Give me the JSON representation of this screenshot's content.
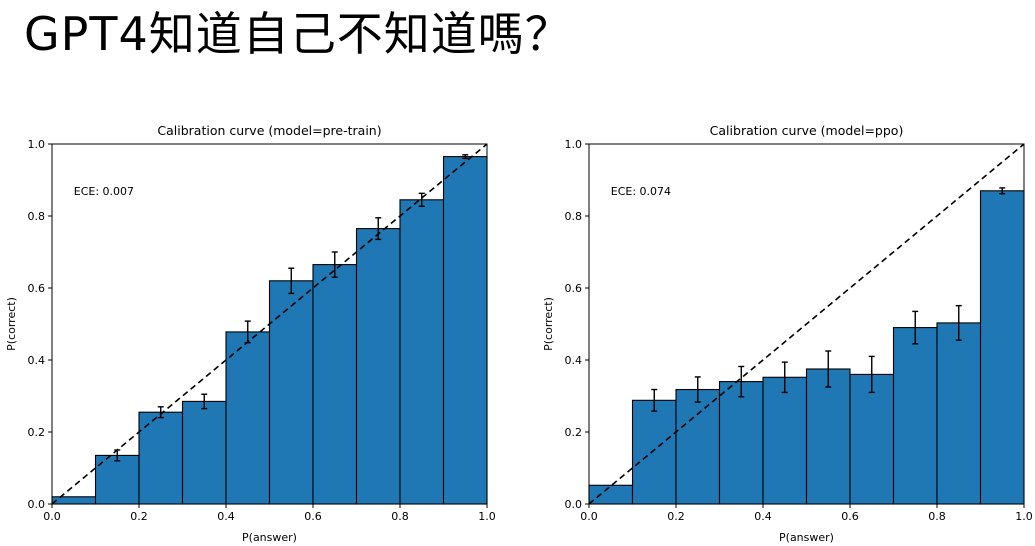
{
  "slide": {
    "title": "GPT4知道自己不知道嗎？"
  },
  "chart_data": [
    {
      "type": "bar",
      "title": "Calibration curve (model=pre-train)",
      "xlabel": "P(answer)",
      "ylabel": "P(correct)",
      "annotation": "ECE: 0.007",
      "xlim": [
        0.0,
        1.0
      ],
      "ylim": [
        0.0,
        1.0
      ],
      "x_ticks": [
        "0.0",
        "0.2",
        "0.4",
        "0.6",
        "0.8",
        "1.0"
      ],
      "y_ticks": [
        "0.0",
        "0.2",
        "0.4",
        "0.6",
        "0.8",
        "1.0"
      ],
      "bin_edges": [
        0.0,
        0.1,
        0.2,
        0.3,
        0.4,
        0.5,
        0.6,
        0.7,
        0.8,
        0.9,
        1.0
      ],
      "values": [
        0.02,
        0.135,
        0.255,
        0.285,
        0.478,
        0.62,
        0.665,
        0.765,
        0.845,
        0.965
      ],
      "error": [
        0.0,
        0.015,
        0.015,
        0.02,
        0.03,
        0.035,
        0.035,
        0.03,
        0.018,
        0.005
      ],
      "reference_line": "diagonal dashed",
      "grid": false,
      "bar_color": "#1f77b4"
    },
    {
      "type": "bar",
      "title": "Calibration curve (model=ppo)",
      "xlabel": "P(answer)",
      "ylabel": "P(correct)",
      "annotation": "ECE: 0.074",
      "xlim": [
        0.0,
        1.0
      ],
      "ylim": [
        0.0,
        1.0
      ],
      "x_ticks": [
        "0.0",
        "0.2",
        "0.4",
        "0.6",
        "0.8",
        "1.0"
      ],
      "y_ticks": [
        "0.0",
        "0.2",
        "0.4",
        "0.6",
        "0.8",
        "1.0"
      ],
      "bin_edges": [
        0.0,
        0.1,
        0.2,
        0.3,
        0.4,
        0.5,
        0.6,
        0.7,
        0.8,
        0.9,
        1.0
      ],
      "values": [
        0.052,
        0.288,
        0.318,
        0.34,
        0.352,
        0.375,
        0.36,
        0.49,
        0.503,
        0.87
      ],
      "error": [
        0.0,
        0.03,
        0.035,
        0.042,
        0.042,
        0.05,
        0.05,
        0.045,
        0.048,
        0.008
      ],
      "reference_line": "diagonal dashed",
      "grid": false,
      "bar_color": "#1f77b4"
    }
  ]
}
